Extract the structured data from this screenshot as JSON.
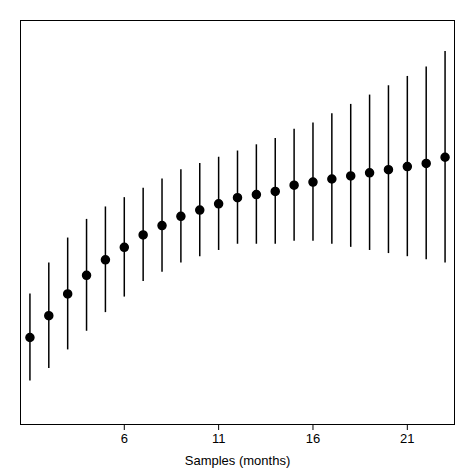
{
  "chart_data": {
    "type": "errorbar",
    "xlabel": "Samples (months)",
    "x": [
      1,
      2,
      3,
      4,
      5,
      6,
      7,
      8,
      9,
      10,
      11,
      12,
      13,
      14,
      15,
      16,
      17,
      18,
      19,
      20,
      21,
      22,
      23
    ],
    "values": [
      28,
      35,
      42,
      48,
      53,
      57,
      61,
      64,
      67,
      69,
      71,
      73,
      74,
      75,
      77,
      78,
      79,
      80,
      81,
      82,
      83,
      84,
      86
    ],
    "y_upper": [
      42,
      52,
      60,
      66,
      70,
      73,
      76,
      79,
      82,
      84,
      86,
      88,
      90,
      92,
      95,
      97,
      100,
      103,
      106,
      109,
      112,
      115,
      120
    ],
    "y_lower": [
      14,
      18,
      24,
      30,
      36,
      41,
      46,
      49,
      52,
      54,
      56,
      58,
      58,
      58,
      59,
      59,
      58,
      57,
      56,
      55,
      54,
      53,
      52
    ],
    "color": "#000000",
    "marker": "circle",
    "xlim": [
      0.5,
      23.5
    ],
    "ylim": [
      0,
      130
    ],
    "xticks": [
      6,
      11,
      16,
      21
    ],
    "tick_labels": "x",
    "grid": false
  }
}
